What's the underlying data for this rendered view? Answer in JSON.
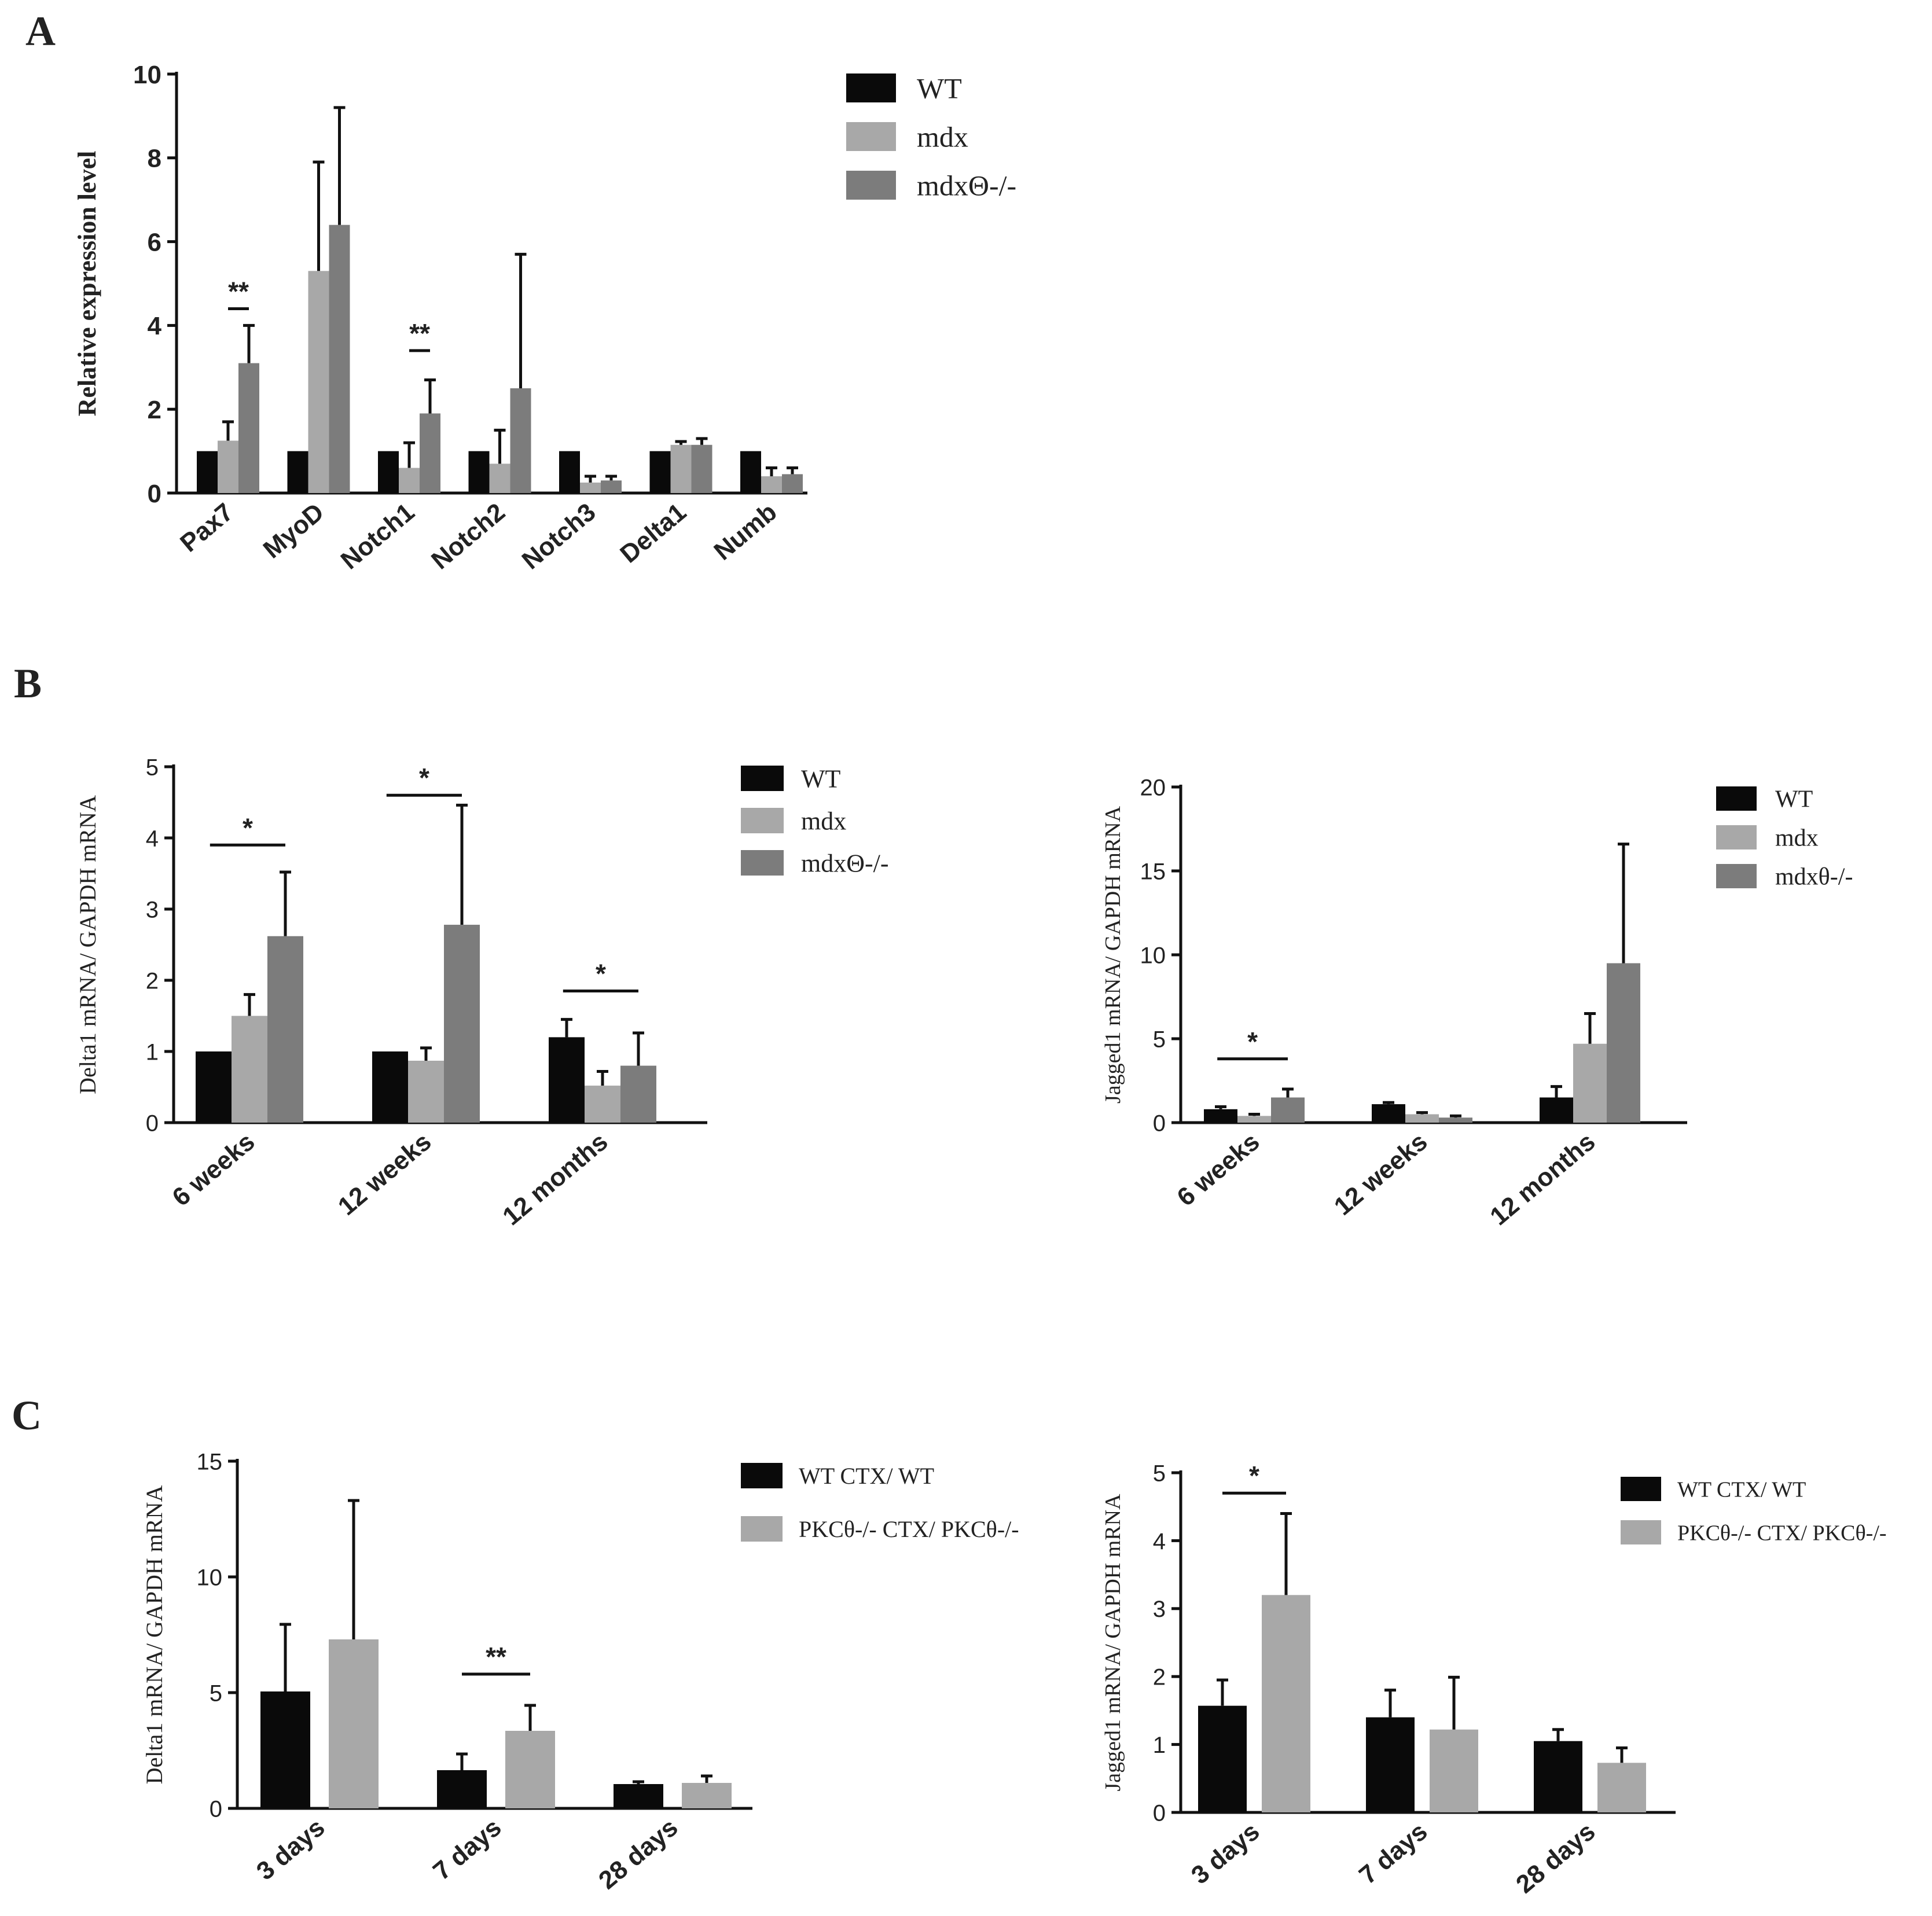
{
  "panels": [
    {
      "label": "A"
    },
    {
      "label": "B"
    },
    {
      "label": "C"
    }
  ],
  "colors": {
    "black": "#0a0a0a",
    "light_gray": "#a8a8a8",
    "dark_gray": "#7c7c7c"
  },
  "chart_data": [
    {
      "id": "A",
      "type": "bar",
      "ylabel": "Relative expression level",
      "ylim": [
        0,
        10
      ],
      "yticks": [
        0,
        2,
        4,
        6,
        8,
        10
      ],
      "categories": [
        "Pax7",
        "MyoD",
        "Notch1",
        "Notch2",
        "Notch3",
        "Delta1",
        "Numb"
      ],
      "series": [
        {
          "name": "WT",
          "color": "#0a0a0a",
          "values": [
            1,
            1,
            1,
            1,
            1,
            1,
            1
          ],
          "errors": [
            0,
            0,
            0,
            0,
            0,
            0,
            0
          ]
        },
        {
          "name": "mdx",
          "color": "#a8a8a8",
          "values": [
            1.25,
            5.3,
            0.6,
            0.7,
            0.25,
            1.15,
            0.4
          ],
          "errors": [
            0.45,
            2.6,
            0.6,
            0.8,
            0.15,
            0.08,
            0.2
          ]
        },
        {
          "name": "mdxΘ-/-",
          "color": "#7c7c7c",
          "values": [
            3.1,
            6.4,
            1.9,
            2.5,
            0.3,
            1.15,
            0.45
          ],
          "errors": [
            0.9,
            2.8,
            0.8,
            3.2,
            0.1,
            0.15,
            0.15
          ]
        }
      ],
      "significance": [
        {
          "category": 0,
          "from": 1,
          "to": 2,
          "label": "**",
          "y": 4.4
        },
        {
          "category": 2,
          "from": 1,
          "to": 2,
          "label": "**",
          "y": 3.4
        }
      ],
      "legend": "top-right",
      "legend_font": "serif"
    },
    {
      "id": "B-left",
      "type": "bar",
      "ylabel": "Delta1 mRNA/ GAPDH mRNA",
      "ylim": [
        0,
        5
      ],
      "yticks": [
        0,
        1,
        2,
        3,
        4,
        5
      ],
      "categories": [
        "6 weeks",
        "12 weeks",
        "12 months"
      ],
      "series": [
        {
          "name": "WT",
          "color": "#0a0a0a",
          "values": [
            1,
            1,
            1.2
          ],
          "errors": [
            0,
            0,
            0.25
          ]
        },
        {
          "name": "mdx",
          "color": "#a8a8a8",
          "values": [
            1.5,
            0.87,
            0.52
          ],
          "errors": [
            0.3,
            0.18,
            0.2
          ]
        },
        {
          "name": "mdxΘ-/-",
          "color": "#7c7c7c",
          "values": [
            2.62,
            2.78,
            0.8
          ],
          "errors": [
            0.9,
            1.68,
            0.46
          ]
        }
      ],
      "significance": [
        {
          "category": 0,
          "from": 0.4,
          "to": 2,
          "label": "*",
          "y": 3.9
        },
        {
          "category": 1,
          "from": 0.4,
          "to": 2,
          "label": "*",
          "y": 4.6
        },
        {
          "category": 2,
          "from": 0.4,
          "to": 2,
          "label": "*",
          "y": 1.85
        }
      ],
      "legend": "top-right",
      "legend_font": "serif"
    },
    {
      "id": "B-right",
      "type": "bar",
      "ylabel": "Jagged1 mRNA/ GAPDH mRNA",
      "ylim": [
        0,
        20
      ],
      "yticks": [
        0,
        5,
        10,
        15,
        20
      ],
      "categories": [
        "6 weeks",
        "12 weeks",
        "12 months"
      ],
      "series": [
        {
          "name": "WT",
          "color": "#0a0a0a",
          "values": [
            0.8,
            1.1,
            1.5
          ],
          "errors": [
            0.15,
            0.1,
            0.65
          ]
        },
        {
          "name": "mdx",
          "color": "#a8a8a8",
          "values": [
            0.4,
            0.5,
            4.7
          ],
          "errors": [
            0.1,
            0.1,
            1.8
          ]
        },
        {
          "name": "mdxθ-/-",
          "color": "#7c7c7c",
          "values": [
            1.5,
            0.3,
            9.5
          ],
          "errors": [
            0.5,
            0.1,
            7.1
          ]
        }
      ],
      "significance": [
        {
          "category": 0,
          "from": 0.4,
          "to": 2,
          "label": "*",
          "y": 3.8
        }
      ],
      "legend": "top-right",
      "legend_font": "serif"
    },
    {
      "id": "C-left",
      "type": "bar",
      "ylabel": "Delta1 mRNA/ GAPDH mRNA",
      "ylim": [
        0,
        15
      ],
      "yticks": [
        0,
        5,
        10,
        15
      ],
      "categories": [
        "3 days",
        "7 days",
        "28 days"
      ],
      "series": [
        {
          "name": "WT CTX/ WT",
          "color": "#0a0a0a",
          "values": [
            5.05,
            1.65,
            1.05
          ],
          "errors": [
            2.9,
            0.7,
            0.1
          ]
        },
        {
          "name": "PKCθ-/- CTX/ PKCθ-/-",
          "color": "#a8a8a8",
          "values": [
            7.3,
            3.35,
            1.1
          ],
          "errors": [
            6.0,
            1.1,
            0.3
          ]
        }
      ],
      "significance": [
        {
          "category": 1,
          "from": 0,
          "to": 1,
          "label": "**",
          "y": 5.8
        }
      ],
      "legend": "top-right",
      "legend_font": "serif"
    },
    {
      "id": "C-right",
      "type": "bar",
      "ylabel": "Jagged1 mRNA/ GAPDH mRNA",
      "ylim": [
        0,
        5
      ],
      "yticks": [
        0,
        1,
        2,
        3,
        4,
        5
      ],
      "categories": [
        "3 days",
        "7 days",
        "28 days"
      ],
      "series": [
        {
          "name": "WT CTX/ WT",
          "color": "#0a0a0a",
          "values": [
            1.57,
            1.4,
            1.05
          ],
          "errors": [
            0.38,
            0.4,
            0.17
          ]
        },
        {
          "name": "PKCθ-/- CTX/ PKCθ-/-",
          "color": "#a8a8a8",
          "values": [
            3.2,
            1.22,
            0.73
          ],
          "errors": [
            1.2,
            0.77,
            0.22
          ]
        }
      ],
      "significance": [
        {
          "category": 0,
          "from": 0,
          "to": 1,
          "label": "*",
          "y": 4.7
        }
      ],
      "legend": "top-right",
      "legend_font": "serif"
    }
  ]
}
